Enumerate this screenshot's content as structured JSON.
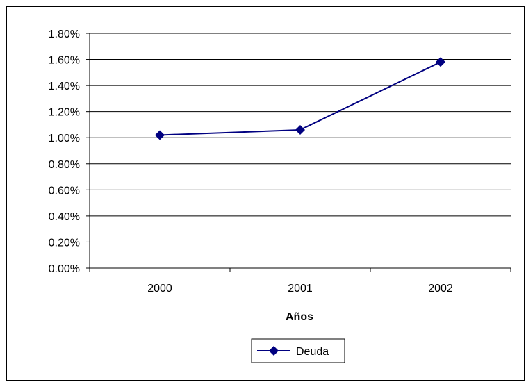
{
  "chart_data": {
    "type": "line",
    "categories": [
      "2000",
      "2001",
      "2002"
    ],
    "series": [
      {
        "name": "Deuda",
        "values": [
          1.02,
          1.06,
          1.58
        ],
        "color": "#000080",
        "marker": "diamond"
      }
    ],
    "title": "",
    "xlabel": "Años",
    "ylabel": "",
    "ylim": [
      0,
      1.8
    ],
    "y_ticks": [
      "0.00%",
      "0.20%",
      "0.40%",
      "0.60%",
      "0.80%",
      "1.00%",
      "1.20%",
      "1.40%",
      "1.60%",
      "1.80%"
    ],
    "y_unit": "percent",
    "grid": true,
    "legend_position": "bottom"
  }
}
